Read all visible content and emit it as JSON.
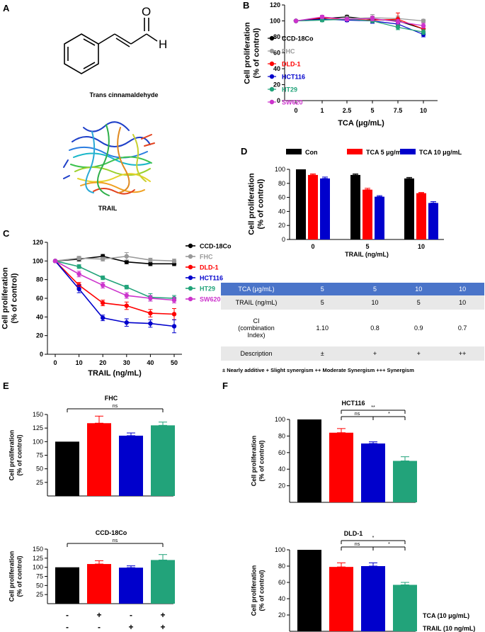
{
  "colors": {
    "black": "#000000",
    "gray": "#999999",
    "red": "#ff0000",
    "blue": "#0000cc",
    "green": "#22a37a",
    "purple": "#cc33cc",
    "table_header": "#4a74c9"
  },
  "panel_a": {
    "letter": "A",
    "structure_label": "Trans cinnamaldehyde",
    "protein_label": "TRAIL",
    "atom_o": "O",
    "atom_h": "H"
  },
  "panel_c": {
    "letter": "C"
  },
  "panel_e": {
    "letter": "E"
  },
  "panel_f": {
    "letter": "F"
  },
  "chart_data": [
    {
      "id": "B",
      "type": "line",
      "xlabel": "TCA (μg/mL)",
      "ylabel": [
        "Cell proliferation",
        "(% of control)"
      ],
      "categories": [
        "0",
        "1",
        "2.5",
        "5",
        "7.5",
        "10"
      ],
      "ylim": [
        0,
        120
      ],
      "yticks": [
        "0",
        "20",
        "40",
        "60",
        "80",
        "100",
        "120"
      ],
      "series": [
        {
          "name": "CCD-18Co",
          "color": "#000000",
          "values": [
            100,
            103,
            105,
            102,
            100,
            90
          ],
          "err": [
            1,
            2,
            2,
            3,
            3,
            4
          ]
        },
        {
          "name": "FHC",
          "color": "#999999",
          "values": [
            100,
            101,
            103,
            104,
            103,
            100
          ],
          "err": [
            1,
            2,
            3,
            4,
            3,
            2
          ]
        },
        {
          "name": "DLD-1",
          "color": "#ff0000",
          "values": [
            100,
            104,
            102,
            101,
            102,
            90
          ],
          "err": [
            1,
            2,
            2,
            3,
            8,
            3
          ]
        },
        {
          "name": "HCT116",
          "color": "#0000cc",
          "values": [
            100,
            102,
            101,
            100,
            96,
            83
          ],
          "err": [
            1,
            2,
            2,
            3,
            4,
            3
          ]
        },
        {
          "name": "HT29",
          "color": "#22a37a",
          "values": [
            100,
            101,
            102,
            100,
            92,
            86
          ],
          "err": [
            1,
            2,
            2,
            2,
            3,
            3
          ]
        },
        {
          "name": "SW620",
          "color": "#cc33cc",
          "values": [
            100,
            105,
            102,
            103,
            99,
            94
          ],
          "err": [
            1,
            2,
            2,
            3,
            3,
            3
          ]
        }
      ]
    },
    {
      "id": "C",
      "type": "line",
      "xlabel": "TRAIL (ng/mL)",
      "ylabel": [
        "Cell proliferation",
        "(% of control)"
      ],
      "x": [
        0,
        10,
        20,
        30,
        40,
        50
      ],
      "xlim": [
        0,
        50
      ],
      "xticks": [
        "0",
        "10",
        "20",
        "30",
        "40",
        "50"
      ],
      "ylim": [
        0,
        120
      ],
      "yticks": [
        "0",
        "20",
        "40",
        "60",
        "80",
        "100",
        "120"
      ],
      "series": [
        {
          "name": "CCD-18Co",
          "color": "#000000",
          "values": [
            100,
            102,
            105,
            99,
            97,
            97
          ],
          "err": [
            1,
            2,
            2,
            2,
            2,
            2
          ]
        },
        {
          "name": "FHC",
          "color": "#999999",
          "values": [
            100,
            103,
            102,
            105,
            101,
            100
          ],
          "err": [
            1,
            2,
            2,
            4,
            2,
            2
          ]
        },
        {
          "name": "DLD-1",
          "color": "#ff0000",
          "values": [
            100,
            74,
            55,
            52,
            44,
            43
          ],
          "err": [
            1,
            3,
            3,
            4,
            4,
            6
          ]
        },
        {
          "name": "HCT116",
          "color": "#0000cc",
          "values": [
            100,
            70,
            39,
            34,
            33,
            30
          ],
          "err": [
            1,
            4,
            3,
            4,
            4,
            7
          ]
        },
        {
          "name": "HT29",
          "color": "#22a37a",
          "values": [
            100,
            94,
            82,
            72,
            61,
            60
          ],
          "err": [
            1,
            2,
            2,
            2,
            4,
            3
          ]
        },
        {
          "name": "SW620",
          "color": "#cc33cc",
          "values": [
            100,
            86,
            74,
            63,
            60,
            58
          ],
          "err": [
            1,
            3,
            3,
            3,
            3,
            3
          ]
        }
      ]
    },
    {
      "id": "D",
      "type": "bar",
      "xlabel": "TRAIL (ng/mL)",
      "ylabel": [
        "Cell proliferation",
        "(% of control)"
      ],
      "categories": [
        "0",
        "5",
        "10"
      ],
      "ylim": [
        0,
        100
      ],
      "yticks": [
        "0",
        "20",
        "40",
        "60",
        "80",
        "100"
      ],
      "series": [
        {
          "name": "Con",
          "color": "#000000",
          "values": [
            100,
            92,
            87
          ],
          "err": [
            0,
            1.5,
            1.5
          ]
        },
        {
          "name": "TCA 5 μg/mL",
          "color": "#ff0000",
          "values": [
            92,
            71,
            66
          ],
          "err": [
            1.5,
            2,
            1
          ]
        },
        {
          "name": "TCA 10 μg/mL",
          "color": "#0000cc",
          "values": [
            87,
            61,
            52
          ],
          "err": [
            2,
            1.5,
            2
          ]
        }
      ]
    },
    {
      "id": "E-FHC",
      "type": "bar",
      "title": "FHC",
      "ylabel": [
        "Cell proliferation",
        "(% of control)"
      ],
      "ylim": [
        0,
        150
      ],
      "yticks": [
        "25",
        "50",
        "75",
        "100",
        "125",
        "150"
      ],
      "colors": [
        "#000000",
        "#ff0000",
        "#0000cc",
        "#22a37a"
      ],
      "values": [
        100,
        134,
        111,
        130
      ],
      "err": [
        0,
        13,
        5,
        6
      ],
      "significance": [
        {
          "from": 0,
          "to": 3,
          "label": "ns"
        }
      ]
    },
    {
      "id": "E-CCD",
      "type": "bar",
      "title": "CCD-18Co",
      "ylabel": [
        "Cell proliferation",
        "(% of control)"
      ],
      "ylim": [
        0,
        150
      ],
      "yticks": [
        "25",
        "50",
        "75",
        "100",
        "125",
        "150"
      ],
      "colors": [
        "#000000",
        "#ff0000",
        "#0000cc",
        "#22a37a"
      ],
      "values": [
        100,
        109,
        99,
        120
      ],
      "err": [
        0,
        9,
        5,
        15
      ],
      "significance": [
        {
          "from": 0,
          "to": 3,
          "label": "ns"
        }
      ]
    },
    {
      "id": "F-HCT116",
      "type": "bar",
      "title": "HCT116",
      "ylabel": [
        "Cell proliferation",
        "(% of control)"
      ],
      "ylim": [
        0,
        100
      ],
      "yticks": [
        "20",
        "40",
        "60",
        "80",
        "100"
      ],
      "colors": [
        "#000000",
        "#ff0000",
        "#0000cc",
        "#22a37a"
      ],
      "values": [
        100,
        84,
        71,
        50
      ],
      "err": [
        0,
        5,
        2,
        5
      ],
      "significance": [
        {
          "from": 1,
          "to": 2,
          "label": "ns"
        },
        {
          "from": 2,
          "to": 3,
          "label": "*"
        },
        {
          "from": 1,
          "to": 3,
          "label": "**"
        }
      ]
    },
    {
      "id": "F-DLD1",
      "type": "bar",
      "title": "DLD-1",
      "ylabel": [
        "Cell proliferation",
        "(% of control)"
      ],
      "ylim": [
        0,
        100
      ],
      "yticks": [
        "20",
        "40",
        "60",
        "80",
        "100"
      ],
      "colors": [
        "#000000",
        "#ff0000",
        "#0000cc",
        "#22a37a"
      ],
      "values": [
        100,
        79,
        80,
        57
      ],
      "err": [
        0,
        5,
        4,
        3
      ],
      "significance": [
        {
          "from": 1,
          "to": 2,
          "label": "ns"
        },
        {
          "from": 2,
          "to": 3,
          "label": "*"
        },
        {
          "from": 1,
          "to": 3,
          "label": "*"
        }
      ]
    }
  ],
  "treatment_rows": {
    "tca_label": "TCA (10 μg/mL)",
    "trail_label": "TRAIL (10 ng/mL)",
    "tca_signs": [
      "-",
      "+",
      "-",
      "+"
    ],
    "trail_signs": [
      "-",
      "-",
      "+",
      "+"
    ]
  },
  "ci_table": {
    "rows": [
      {
        "label": "TCA (μg/mL)",
        "cells": [
          "5",
          "5",
          "10",
          "10"
        ]
      },
      {
        "label": "TRAIL (ng/mL)",
        "cells": [
          "5",
          "10",
          "5",
          "10"
        ]
      },
      {
        "label": "CI\n(combination\nIndex)",
        "cells": [
          "1.10",
          "0.8",
          "0.9",
          "0.7"
        ]
      },
      {
        "label": "Description",
        "cells": [
          "±",
          "+",
          "+",
          "++"
        ]
      }
    ],
    "legend": "± Nearly additive  + Slight synergism  ++ Moderate Synergism  +++ Synergism"
  }
}
